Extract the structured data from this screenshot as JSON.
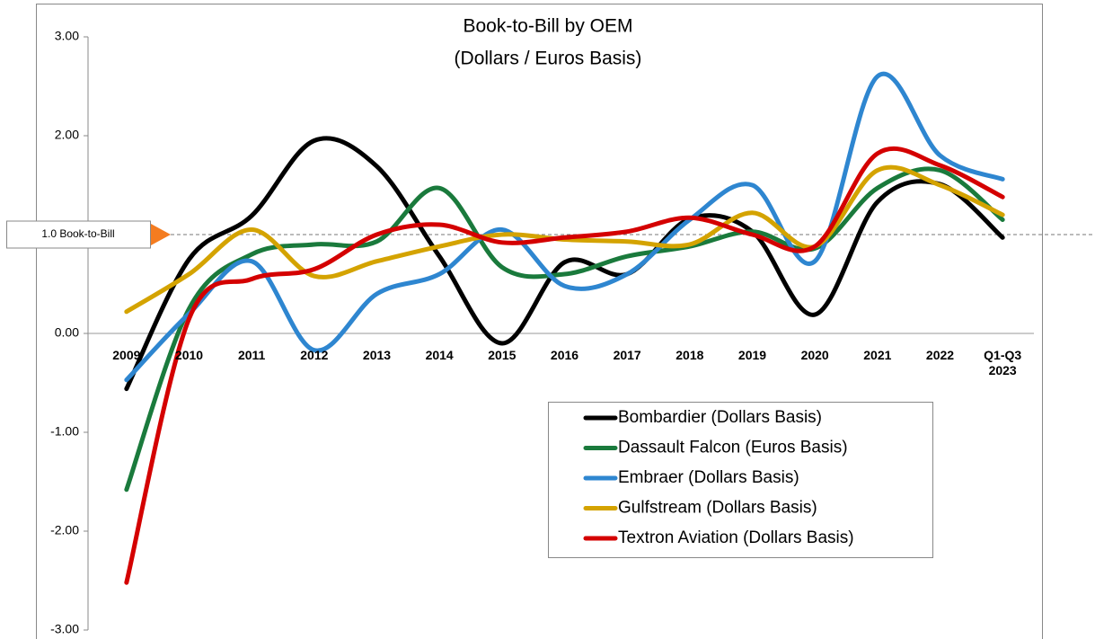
{
  "chart_data": {
    "type": "line",
    "title": "Book-to-Bill by OEM",
    "subtitle": "(Dollars / Euros Basis)",
    "categories": [
      "2009",
      "2010",
      "2011",
      "2012",
      "2013",
      "2014",
      "2015",
      "2016",
      "2017",
      "2018",
      "2019",
      "2020",
      "2021",
      "2022",
      "Q1-Q3 2023"
    ],
    "series": [
      {
        "name": "Bombardier (Dollars Basis)",
        "color": "#000000",
        "values": [
          -0.56,
          0.75,
          1.19,
          1.95,
          1.69,
          0.78,
          -0.1,
          0.72,
          0.6,
          1.16,
          1.03,
          0.19,
          1.33,
          1.51,
          0.97
        ]
      },
      {
        "name": "Dassault Falcon (Euros Basis)",
        "color": "#1a7a3c",
        "values": [
          -1.58,
          0.25,
          0.8,
          0.9,
          0.93,
          1.47,
          0.67,
          0.6,
          0.78,
          0.88,
          1.03,
          0.86,
          1.47,
          1.65,
          1.15
        ]
      },
      {
        "name": "Embraer (Dollars Basis)",
        "color": "#2e86d0",
        "values": [
          -0.47,
          0.2,
          0.73,
          -0.17,
          0.4,
          0.6,
          1.05,
          0.48,
          0.6,
          1.15,
          1.5,
          0.73,
          2.6,
          1.8,
          1.56
        ]
      },
      {
        "name": "Gulfstream (Dollars Basis)",
        "color": "#d4a300",
        "values": [
          0.22,
          0.6,
          1.05,
          0.58,
          0.73,
          0.88,
          1.0,
          0.95,
          0.93,
          0.9,
          1.22,
          0.88,
          1.65,
          1.5,
          1.2
        ]
      },
      {
        "name": "Textron Aviation (Dollars Basis)",
        "color": "#d40000",
        "values": [
          -2.52,
          0.15,
          0.55,
          0.65,
          1.0,
          1.1,
          0.92,
          0.97,
          1.03,
          1.17,
          1.0,
          0.88,
          1.82,
          1.7,
          1.38
        ]
      }
    ],
    "ylim": [
      -3,
      3
    ],
    "yticks": [
      {
        "value": 3,
        "label": "3.00"
      },
      {
        "value": 2,
        "label": "2.00"
      },
      {
        "value": 0,
        "label": "0.00"
      },
      {
        "value": -1,
        "label": "-1.00"
      },
      {
        "value": -2,
        "label": "-2.00"
      },
      {
        "value": -3,
        "label": "-3.00"
      }
    ],
    "reference_line": {
      "value": 1,
      "label": "1.0 Book-to-Bill",
      "color": "#f47c20"
    },
    "smooth": true,
    "legend": "lower right"
  }
}
